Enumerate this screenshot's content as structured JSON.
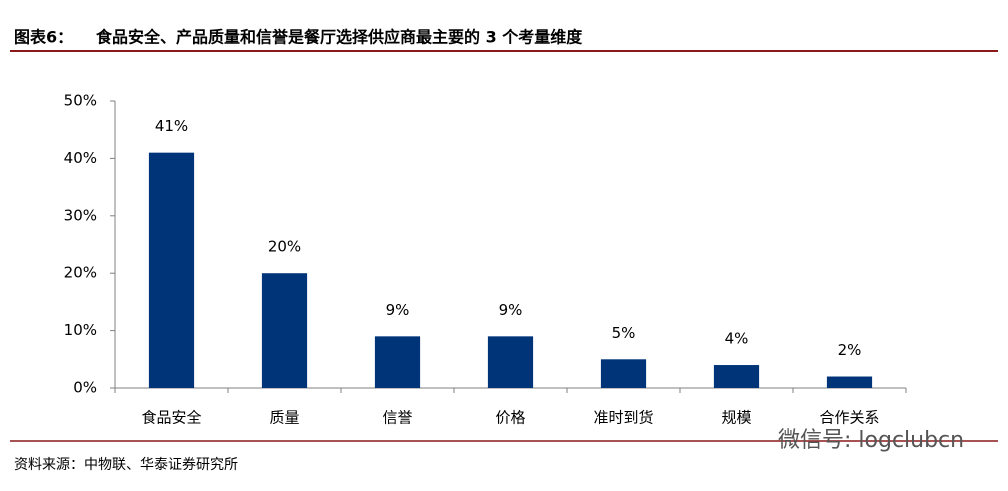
{
  "chart_data": {
    "type": "bar",
    "figure_label": "图表6：",
    "title": "食品安全、产品质量和信誉是餐厅选择供应商最主要的 3 个考量维度",
    "categories": [
      "食品安全",
      "质量",
      "信誉",
      "价格",
      "准时到货",
      "规模",
      "合作关系"
    ],
    "values": [
      41,
      20,
      9,
      9,
      5,
      4,
      2
    ],
    "value_labels": [
      "41%",
      "20%",
      "9%",
      "9%",
      "5%",
      "4%",
      "2%"
    ],
    "color": "#003478",
    "ylim": [
      0,
      50
    ],
    "yticks": [
      {
        "value": 0,
        "label": "0%"
      },
      {
        "value": 10,
        "label": "10%"
      },
      {
        "value": 20,
        "label": "20%"
      },
      {
        "value": 30,
        "label": "30%"
      },
      {
        "value": 40,
        "label": "40%"
      },
      {
        "value": 50,
        "label": "50%"
      }
    ],
    "grid": false,
    "source": "资料来源：中物联、华泰证券研究所",
    "watermark": "微信号: logclubcn"
  }
}
